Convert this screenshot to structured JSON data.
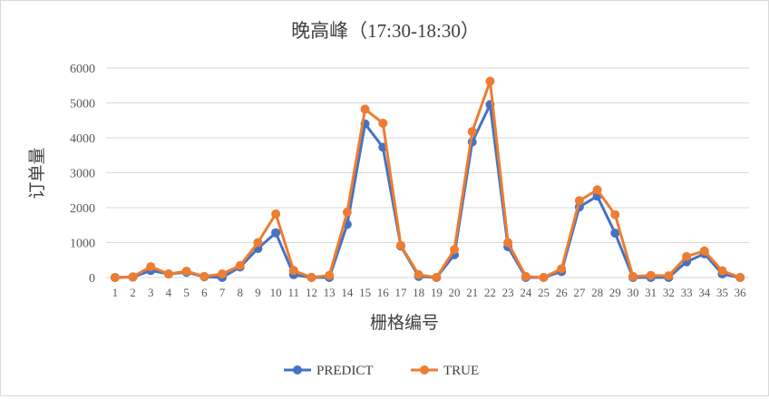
{
  "chart_data": {
    "type": "line",
    "title": "晚高峰（17:30-18:30）",
    "xlabel": "栅格编号",
    "ylabel": "订单量",
    "ylim": [
      0,
      6000
    ],
    "yticks": [
      0,
      1000,
      2000,
      3000,
      4000,
      5000,
      6000
    ],
    "grid": true,
    "legend_position": "bottom",
    "categories": [
      "1",
      "2",
      "3",
      "4",
      "5",
      "6",
      "7",
      "8",
      "9",
      "10",
      "11",
      "12",
      "13",
      "14",
      "15",
      "16",
      "17",
      "18",
      "19",
      "20",
      "21",
      "22",
      "23",
      "24",
      "25",
      "26",
      "27",
      "28",
      "29",
      "30",
      "31",
      "32",
      "33",
      "34",
      "35",
      "36"
    ],
    "series": [
      {
        "name": "PREDICT",
        "color": "#4472C4",
        "values": [
          0,
          10,
          200,
          100,
          150,
          20,
          0,
          300,
          830,
          1280,
          80,
          0,
          0,
          1520,
          4400,
          3730,
          900,
          30,
          0,
          650,
          3880,
          4950,
          880,
          0,
          0,
          170,
          2020,
          2330,
          1270,
          0,
          0,
          0,
          450,
          680,
          100,
          0
        ]
      },
      {
        "name": "TRUE",
        "color": "#ED7D31",
        "values": [
          0,
          20,
          310,
          100,
          180,
          30,
          100,
          340,
          1000,
          1820,
          200,
          0,
          60,
          1870,
          4820,
          4420,
          920,
          80,
          0,
          800,
          4180,
          5620,
          1000,
          30,
          0,
          250,
          2200,
          2510,
          1800,
          30,
          60,
          50,
          600,
          760,
          190,
          0
        ]
      }
    ]
  }
}
